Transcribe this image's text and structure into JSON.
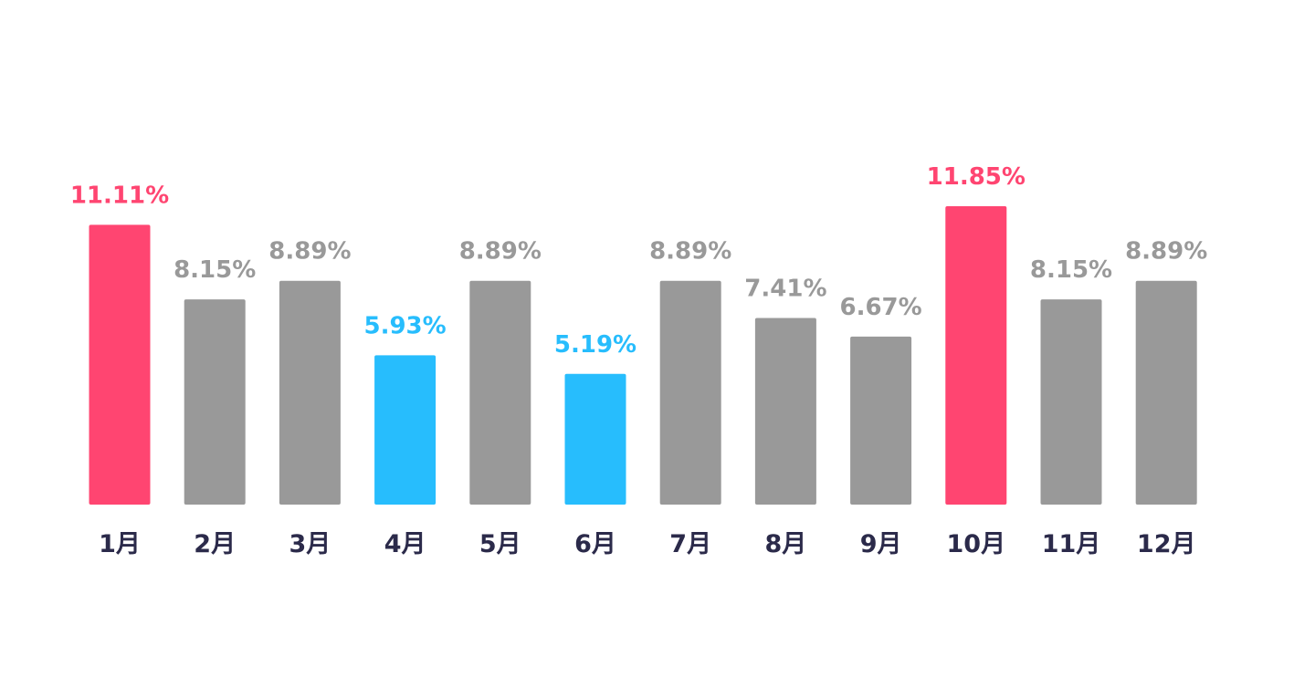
{
  "chart_data": {
    "type": "bar",
    "categories": [
      "1月",
      "2月",
      "3月",
      "4月",
      "5月",
      "6月",
      "7月",
      "8月",
      "9月",
      "10月",
      "11月",
      "12月"
    ],
    "values": [
      11.11,
      8.15,
      8.89,
      5.93,
      8.89,
      5.19,
      8.89,
      7.41,
      6.67,
      11.85,
      8.15,
      8.89
    ],
    "value_labels": [
      "11.11%",
      "8.15%",
      "8.89%",
      "5.93%",
      "8.89%",
      "5.19%",
      "8.89%",
      "7.41%",
      "6.67%",
      "11.85%",
      "8.15%",
      "8.89%"
    ],
    "highlight": [
      "high",
      "normal",
      "normal",
      "low",
      "normal",
      "low",
      "normal",
      "normal",
      "normal",
      "high",
      "normal",
      "normal"
    ],
    "title": "",
    "xlabel": "",
    "ylabel": "",
    "ylim": [
      0,
      11.85
    ],
    "grid": false,
    "legend": "none"
  },
  "colors": {
    "high": "#ff4571",
    "low": "#27bdfd",
    "normal": "#999999",
    "tick_text": "#2b2a4a"
  }
}
